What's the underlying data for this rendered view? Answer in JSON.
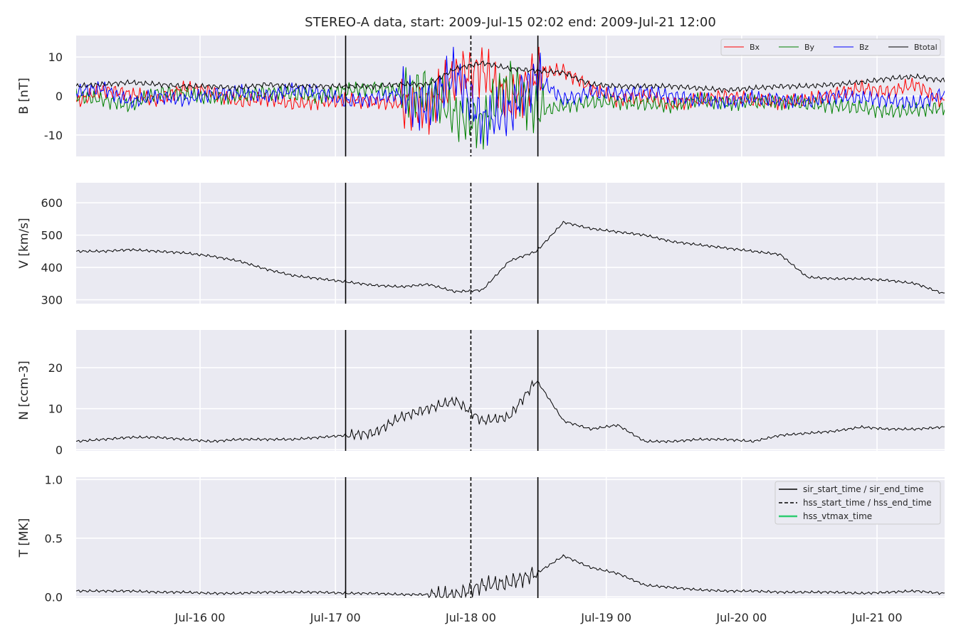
{
  "figure": {
    "title": "STEREO-A data, start: 2009-Jul-15 02:02  end: 2009-Jul-21 12:00"
  },
  "chart_data": [
    {
      "type": "line",
      "ylabel": "B [nT]",
      "ylim": [
        -15.5,
        15.5
      ],
      "yticks": [
        -10,
        0,
        10
      ],
      "grid": true,
      "legend": {
        "placement": "top-right",
        "entries": [
          "Bx",
          "By",
          "Bz",
          "Btotal"
        ]
      },
      "series": [
        {
          "name": "Bx",
          "color": "#ff0000",
          "x": [
            0,
            0.2,
            0.4,
            0.6,
            0.8,
            1.0,
            1.2,
            1.4,
            1.6,
            1.8,
            2.0,
            2.2,
            2.4,
            2.6,
            2.8,
            3.0,
            3.2,
            3.4,
            3.6,
            3.8,
            4.0,
            4.2,
            4.4,
            4.6,
            4.8,
            5.0,
            5.2,
            5.4,
            5.6,
            5.8,
            6.0,
            6.2,
            6.4
          ],
          "y": [
            -1.5,
            1.5,
            0.5,
            -1.0,
            2.0,
            1.0,
            -1.5,
            -0.5,
            -2.0,
            -1.5,
            -1.0,
            -1.5,
            -2.0,
            -3.0,
            5.0,
            7.0,
            -2.0,
            6.0,
            6.5,
            2.0,
            -1.0,
            0.0,
            -2.0,
            -1.0,
            0.0,
            -1.0,
            -1.5,
            -1.0,
            0.5,
            2.0,
            1.0,
            3.0,
            -1.5
          ]
        },
        {
          "name": "By",
          "color": "#008000",
          "x": [
            0,
            0.2,
            0.4,
            0.6,
            0.8,
            1.0,
            1.2,
            1.4,
            1.6,
            1.8,
            2.0,
            2.2,
            2.4,
            2.6,
            2.8,
            3.0,
            3.2,
            3.4,
            3.6,
            3.8,
            4.0,
            4.2,
            4.4,
            4.6,
            4.8,
            5.0,
            5.2,
            5.4,
            5.6,
            5.8,
            6.0,
            6.2,
            6.4
          ],
          "y": [
            0.0,
            -1.0,
            -2.5,
            1.0,
            0.5,
            -0.5,
            0.0,
            1.0,
            0.5,
            0.0,
            1.5,
            2.0,
            1.0,
            1.5,
            -5.0,
            -7.0,
            3.5,
            -4.0,
            -2.5,
            -1.5,
            -1.5,
            -2.0,
            -2.5,
            -1.0,
            -2.0,
            -1.5,
            -1.5,
            -2.0,
            -2.5,
            -3.0,
            -4.0,
            -3.5,
            -3.0
          ]
        },
        {
          "name": "Bz",
          "color": "#0000ff",
          "x": [
            0,
            0.2,
            0.4,
            0.6,
            0.8,
            1.0,
            1.2,
            1.4,
            1.6,
            1.8,
            2.0,
            2.2,
            2.4,
            2.6,
            2.8,
            3.0,
            3.2,
            3.4,
            3.6,
            3.8,
            4.0,
            4.2,
            4.4,
            4.6,
            4.8,
            5.0,
            5.2,
            5.4,
            5.6,
            5.8,
            6.0,
            6.2,
            6.4
          ],
          "y": [
            1.0,
            2.0,
            -1.5,
            0.0,
            -1.0,
            0.5,
            1.0,
            0.0,
            1.5,
            1.0,
            -1.5,
            -0.5,
            0.5,
            -3.0,
            6.0,
            -6.5,
            -4.0,
            5.0,
            -1.0,
            1.0,
            0.5,
            1.0,
            0.0,
            -1.0,
            -1.5,
            -0.5,
            -1.0,
            -1.5,
            0.0,
            -0.5,
            -1.0,
            -2.0,
            0.5
          ]
        },
        {
          "name": "Btotal",
          "color": "#000000",
          "x": [
            0,
            0.2,
            0.4,
            0.6,
            0.8,
            1.0,
            1.2,
            1.4,
            1.6,
            1.8,
            2.0,
            2.2,
            2.4,
            2.6,
            2.8,
            3.0,
            3.2,
            3.4,
            3.6,
            3.8,
            4.0,
            4.2,
            4.4,
            4.6,
            4.8,
            5.0,
            5.2,
            5.4,
            5.6,
            5.8,
            6.0,
            6.2,
            6.4
          ],
          "y": [
            2.5,
            3.0,
            3.5,
            3.0,
            2.5,
            2.5,
            2.0,
            3.0,
            2.5,
            2.5,
            2.5,
            2.5,
            3.0,
            3.0,
            7.0,
            8.5,
            7.0,
            6.5,
            6.0,
            3.0,
            2.5,
            2.5,
            2.5,
            2.0,
            1.5,
            2.0,
            2.5,
            2.5,
            3.0,
            3.5,
            4.5,
            5.0,
            4.0
          ]
        }
      ]
    },
    {
      "type": "line",
      "ylabel": "V [km/s]",
      "ylim": [
        288,
        662
      ],
      "yticks": [
        300,
        400,
        500,
        600
      ],
      "grid": true,
      "series": [
        {
          "color": "#000000",
          "x": [
            0,
            0.2,
            0.4,
            0.6,
            0.8,
            1.0,
            1.2,
            1.4,
            1.6,
            1.8,
            2.0,
            2.2,
            2.4,
            2.6,
            2.8,
            3.0,
            3.2,
            3.4,
            3.6,
            3.8,
            4.0,
            4.2,
            4.4,
            4.6,
            4.8,
            5.0,
            5.2,
            5.4,
            5.6,
            5.8,
            6.0,
            6.2,
            6.4
          ],
          "y": [
            450,
            450,
            455,
            450,
            445,
            435,
            420,
            395,
            375,
            365,
            355,
            345,
            340,
            348,
            325,
            330,
            420,
            450,
            540,
            520,
            510,
            500,
            480,
            470,
            460,
            450,
            440,
            370,
            365,
            365,
            360,
            350,
            320
          ]
        }
      ]
    },
    {
      "type": "line",
      "ylabel": "N [ccm-3]",
      "ylim": [
        -0.3,
        29.2
      ],
      "yticks": [
        0,
        10,
        20
      ],
      "grid": true,
      "series": [
        {
          "color": "#000000",
          "x": [
            0,
            0.2,
            0.4,
            0.6,
            0.8,
            1.0,
            1.2,
            1.4,
            1.6,
            1.8,
            2.0,
            2.2,
            2.4,
            2.6,
            2.8,
            3.0,
            3.2,
            3.4,
            3.6,
            3.8,
            4.0,
            4.2,
            4.4,
            4.6,
            4.8,
            5.0,
            5.2,
            5.4,
            5.6,
            5.8,
            6.0,
            6.2,
            6.4
          ],
          "y": [
            2.0,
            2.5,
            3.0,
            3.0,
            2.5,
            2.0,
            2.5,
            2.5,
            2.5,
            3.0,
            3.5,
            4.0,
            8.0,
            10.0,
            12.0,
            7.0,
            8.0,
            17.0,
            7.0,
            5.0,
            6.0,
            2.0,
            2.0,
            2.5,
            2.5,
            2.0,
            3.5,
            4.0,
            4.5,
            5.5,
            5.0,
            5.0,
            5.5
          ]
        }
      ]
    },
    {
      "type": "line",
      "ylabel": "T [MK]",
      "ylim": [
        -0.01,
        1.02
      ],
      "yticks": [
        0.0,
        0.5,
        1.0
      ],
      "ytick_labels": [
        "0.0",
        "0.5",
        "1.0"
      ],
      "grid": true,
      "legend": {
        "placement": "top-right",
        "entries": [
          "sir_start_time / sir_end_time",
          "hss_start_time / hss_end_time",
          "hss_vtmax_time"
        ]
      },
      "series": [
        {
          "color": "#000000",
          "x": [
            0,
            0.2,
            0.4,
            0.6,
            0.8,
            1.0,
            1.2,
            1.4,
            1.6,
            1.8,
            2.0,
            2.2,
            2.4,
            2.6,
            2.8,
            3.0,
            3.2,
            3.4,
            3.6,
            3.8,
            4.0,
            4.2,
            4.4,
            4.6,
            4.8,
            5.0,
            5.2,
            5.4,
            5.6,
            5.8,
            6.0,
            6.2,
            6.4
          ],
          "y": [
            0.05,
            0.05,
            0.05,
            0.04,
            0.04,
            0.03,
            0.03,
            0.04,
            0.04,
            0.04,
            0.03,
            0.03,
            0.02,
            0.02,
            0.01,
            0.1,
            0.12,
            0.2,
            0.35,
            0.25,
            0.2,
            0.1,
            0.08,
            0.06,
            0.05,
            0.05,
            0.04,
            0.04,
            0.04,
            0.03,
            0.04,
            0.05,
            0.03
          ]
        }
      ]
    }
  ],
  "x_axis": {
    "range": [
      0,
      6.414
    ],
    "ticks": [
      0.915,
      1.915,
      2.915,
      3.915,
      4.915,
      5.915
    ],
    "labels": [
      "Jul-16 00",
      "Jul-17 00",
      "Jul-18 00",
      "Jul-19 00",
      "Jul-20 00",
      "Jul-21 00"
    ]
  },
  "events": {
    "sir_start_time": 1.99,
    "hss_start_time": 2.915,
    "sir_end_time": 3.41
  },
  "legend_colors": {
    "sir": "#000000",
    "hss": "#000000",
    "hss_vtmax": "#2ecc71"
  }
}
